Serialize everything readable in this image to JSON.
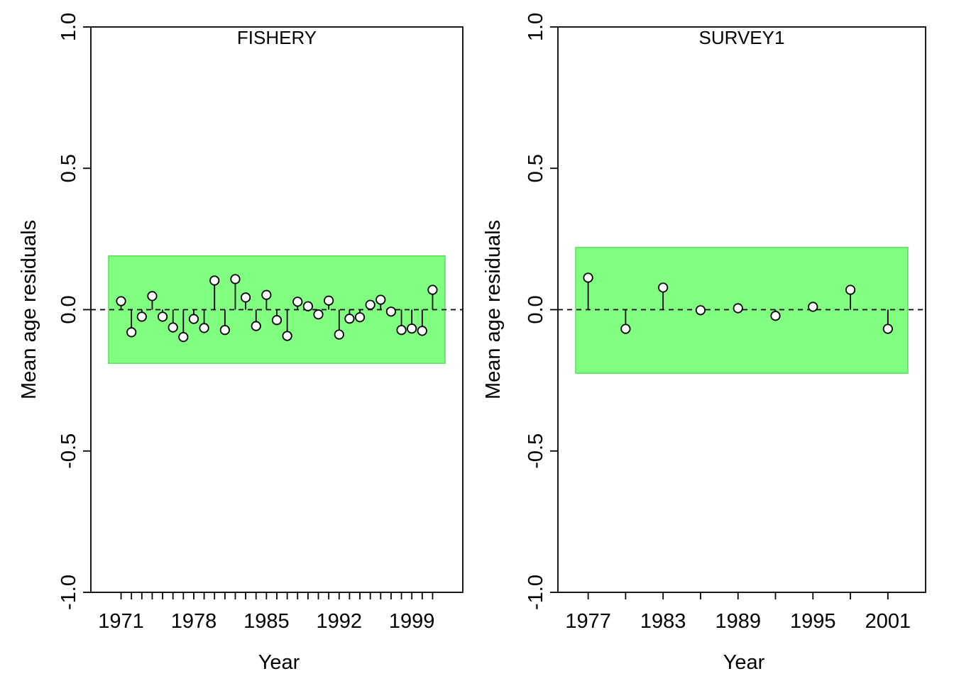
{
  "chart_data": [
    {
      "type": "scatter",
      "style": "residual-stems",
      "title": "FISHERY",
      "xlabel": "Year",
      "ylabel": "Mean age residuals",
      "ylim": [
        -1.0,
        1.0
      ],
      "xlim": [
        1969.8,
        2002.2
      ],
      "y_tick_labels": [
        "-1.0",
        "-0.5",
        "0.0",
        "0.5",
        "1.0"
      ],
      "x_tick_labels": [
        "1971",
        "1978",
        "1985",
        "1992",
        "1999"
      ],
      "reference_line": 0,
      "band": {
        "low": -0.19,
        "high": 0.19,
        "color": "#80ff80"
      },
      "x": [
        1971,
        1972,
        1973,
        1974,
        1975,
        1976,
        1977,
        1978,
        1979,
        1980,
        1981,
        1982,
        1983,
        1984,
        1985,
        1986,
        1987,
        1988,
        1989,
        1990,
        1991,
        1992,
        1993,
        1994,
        1995,
        1996,
        1997,
        1998,
        1999,
        2000,
        2001
      ],
      "values": [
        0.03,
        -0.08,
        -0.025,
        0.048,
        -0.025,
        -0.063,
        -0.097,
        -0.033,
        -0.065,
        0.103,
        -0.072,
        0.108,
        0.043,
        -0.058,
        0.052,
        -0.037,
        -0.093,
        0.028,
        0.012,
        -0.017,
        0.032,
        -0.088,
        -0.032,
        -0.027,
        0.017,
        0.035,
        -0.007,
        -0.072,
        -0.067,
        -0.075,
        0.07
      ]
    },
    {
      "type": "scatter",
      "style": "residual-stems",
      "title": "SURVEY1",
      "xlabel": "Year",
      "ylabel": "Mean age residuals",
      "ylim": [
        -1.0,
        1.0
      ],
      "xlim": [
        1976.0,
        2002.6
      ],
      "y_tick_labels": [
        "-1.0",
        "-0.5",
        "0.0",
        "0.5",
        "1.0"
      ],
      "x_tick_labels": [
        "1977",
        "1983",
        "1989",
        "1995",
        "2001"
      ],
      "reference_line": 0,
      "band": {
        "low": -0.225,
        "high": 0.22,
        "color": "#80ff80"
      },
      "x": [
        1977,
        1980,
        1983,
        1986,
        1989,
        1992,
        1995,
        1998,
        2001
      ],
      "values": [
        0.113,
        -0.068,
        0.078,
        -0.002,
        0.005,
        -0.022,
        0.01,
        0.07,
        -0.068
      ]
    }
  ]
}
